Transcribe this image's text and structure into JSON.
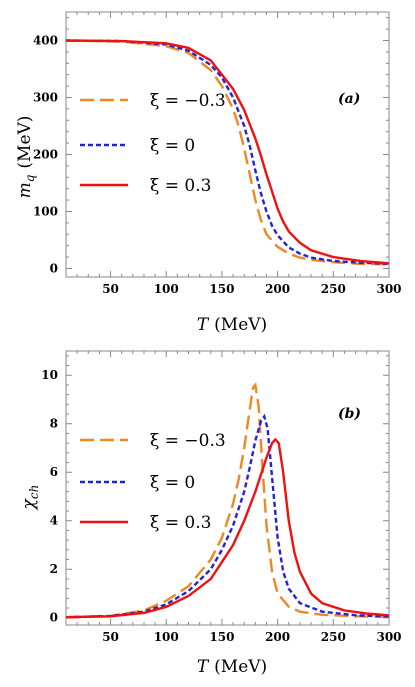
{
  "chart_data": [
    {
      "type": "line",
      "panel_tag": "(a)",
      "xlabel": "T (MeV)",
      "xlabel_var": "T",
      "xlabel_unit": "(MeV)",
      "ylabel": "m_q (MeV)",
      "ylabel_var": "m",
      "ylabel_sub": "q",
      "ylabel_unit": "(MeV)",
      "xlim": [
        10,
        300
      ],
      "ylim": [
        -15,
        450
      ],
      "xticks": [
        50,
        100,
        150,
        200,
        250,
        300
      ],
      "yticks": [
        0,
        100,
        200,
        300,
        400
      ],
      "legend_position": "left",
      "series": [
        {
          "name": "ξ = −0.3",
          "color": "#ee8822",
          "style": "long-dash",
          "x": [
            10,
            60,
            100,
            120,
            140,
            150,
            160,
            165,
            170,
            175,
            180,
            185,
            190,
            200,
            210,
            220,
            230,
            250,
            275,
            300
          ],
          "y": [
            400,
            398,
            390,
            378,
            348,
            320,
            280,
            250,
            210,
            165,
            120,
            85,
            60,
            38,
            26,
            19,
            15,
            11,
            8,
            7
          ]
        },
        {
          "name": "ξ = 0",
          "color": "#2222dd",
          "style": "short-dash",
          "x": [
            10,
            60,
            100,
            120,
            140,
            150,
            160,
            170,
            175,
            180,
            185,
            190,
            195,
            200,
            210,
            220,
            230,
            250,
            275,
            300
          ],
          "y": [
            400,
            399,
            393,
            382,
            357,
            335,
            300,
            250,
            215,
            172,
            132,
            100,
            75,
            58,
            37,
            26,
            19,
            13,
            10,
            8
          ]
        },
        {
          "name": "ξ = 0.3",
          "color": "#ee1111",
          "style": "solid",
          "x": [
            10,
            60,
            100,
            120,
            140,
            160,
            170,
            180,
            185,
            190,
            195,
            200,
            205,
            210,
            220,
            230,
            250,
            275,
            300
          ],
          "y": [
            400,
            399,
            395,
            387,
            365,
            315,
            278,
            228,
            198,
            165,
            135,
            105,
            82,
            65,
            45,
            32,
            20,
            13,
            9
          ]
        }
      ]
    },
    {
      "type": "line",
      "panel_tag": "(b)",
      "xlabel": "T (MeV)",
      "xlabel_var": "T",
      "xlabel_unit": "(MeV)",
      "ylabel": "χ_ch",
      "ylabel_var": "χ",
      "ylabel_sub": "ch",
      "xlim": [
        10,
        300
      ],
      "ylim": [
        -0.3,
        11
      ],
      "xticks": [
        50,
        100,
        150,
        200,
        250,
        300
      ],
      "yticks": [
        0,
        2,
        4,
        6,
        8,
        10
      ],
      "legend_position": "left",
      "series": [
        {
          "name": "ξ = −0.3",
          "color": "#ee8822",
          "style": "long-dash",
          "x": [
            10,
            50,
            80,
            100,
            120,
            140,
            150,
            160,
            165,
            170,
            175,
            178,
            180,
            183,
            186,
            190,
            195,
            200,
            210,
            220,
            240,
            270,
            300
          ],
          "y": [
            0.02,
            0.08,
            0.3,
            0.7,
            1.3,
            2.4,
            3.3,
            4.7,
            5.7,
            7.0,
            8.6,
            9.5,
            9.6,
            8.7,
            6.5,
            3.8,
            1.9,
            1.0,
            0.45,
            0.25,
            0.12,
            0.06,
            0.03
          ]
        },
        {
          "name": "ξ = 0",
          "color": "#2222dd",
          "style": "short-dash",
          "x": [
            10,
            50,
            80,
            100,
            120,
            140,
            150,
            160,
            170,
            175,
            180,
            185,
            188,
            191,
            195,
            200,
            205,
            210,
            220,
            240,
            270,
            300
          ],
          "y": [
            0.02,
            0.07,
            0.25,
            0.55,
            1.1,
            2.0,
            2.8,
            3.8,
            5.2,
            6.2,
            7.3,
            8.1,
            8.3,
            7.8,
            5.8,
            3.3,
            1.9,
            1.2,
            0.6,
            0.25,
            0.1,
            0.05
          ]
        },
        {
          "name": "ξ = 0.3",
          "color": "#ee1111",
          "style": "solid",
          "x": [
            10,
            50,
            80,
            100,
            120,
            140,
            160,
            170,
            180,
            190,
            195,
            198,
            201,
            205,
            210,
            215,
            220,
            230,
            240,
            260,
            280,
            300
          ],
          "y": [
            0.02,
            0.06,
            0.2,
            0.45,
            0.9,
            1.6,
            3.0,
            4.0,
            5.2,
            6.6,
            7.2,
            7.35,
            7.2,
            6.0,
            4.0,
            2.7,
            1.9,
            1.0,
            0.6,
            0.3,
            0.17,
            0.1
          ]
        }
      ]
    }
  ]
}
